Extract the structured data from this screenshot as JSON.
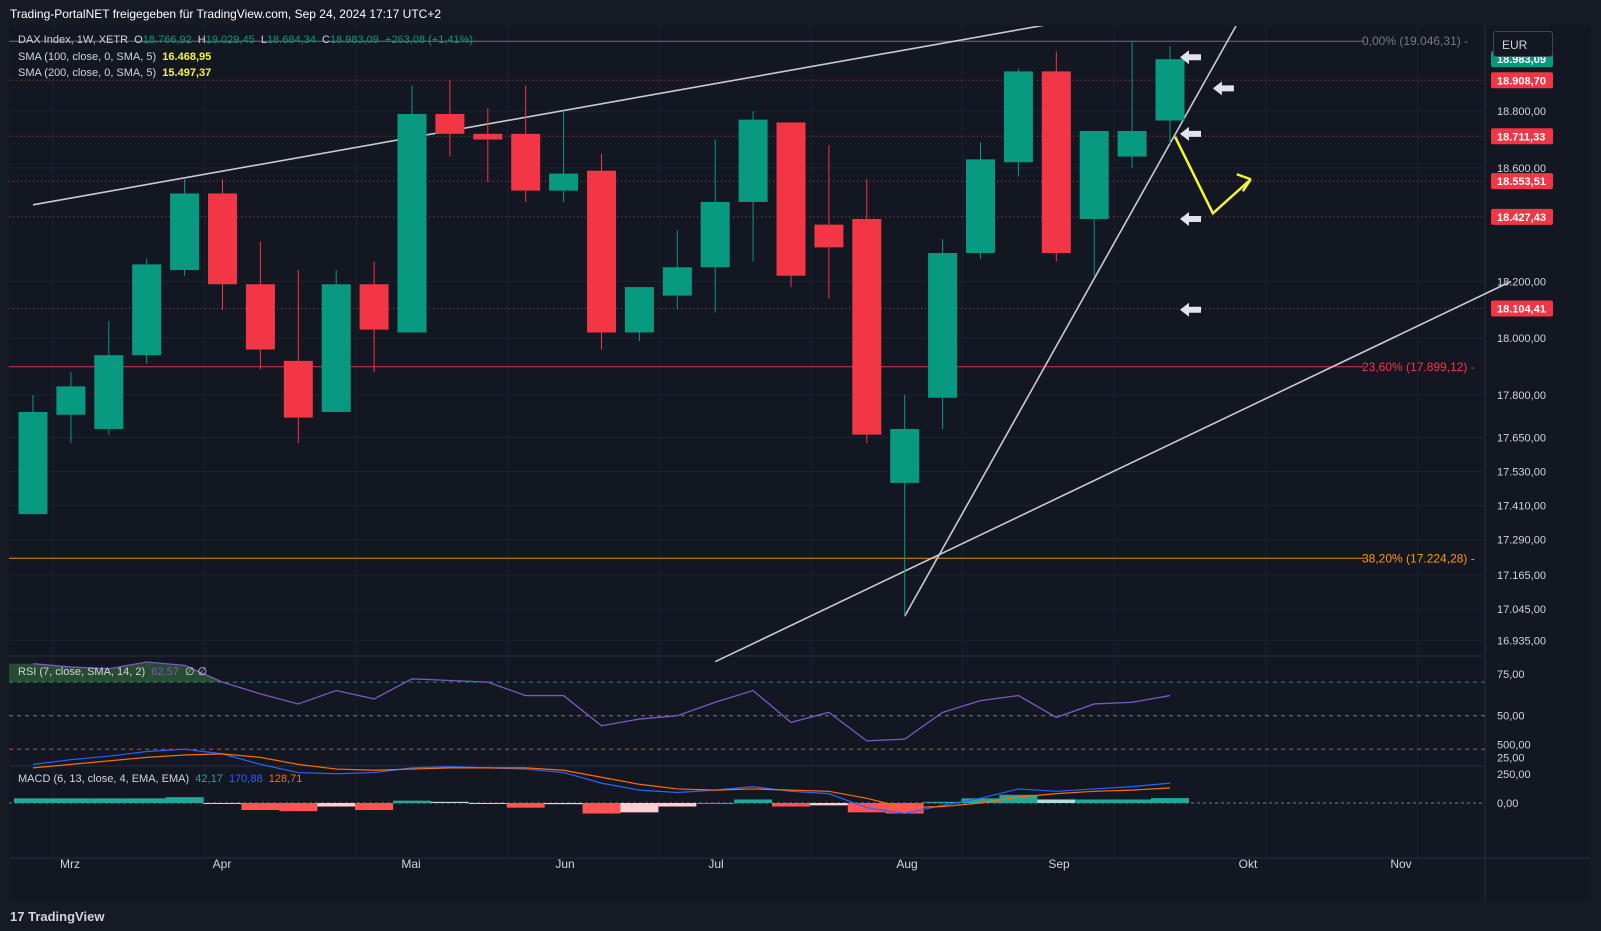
{
  "header": {
    "title": "Trading-PortalNET freigegeben für TradingView.com, Sep 24, 2024 17:17 UTC+2"
  },
  "currency": "EUR",
  "footer": {
    "brand": "TradingView",
    "logo_text": "17"
  },
  "legend": {
    "main": {
      "name": "DAX Index, 1W, XETR",
      "o_label": "O",
      "o": "18.766,92",
      "h_label": "H",
      "h": "19.029,45",
      "l_label": "L",
      "l": "18.684,34",
      "c_label": "C",
      "c": "18.983,09",
      "chg": "+263,08 (+1,41%)"
    },
    "sma100": {
      "label": "SMA (100, close, 0, SMA, 5)",
      "value": "16.468,95"
    },
    "sma200": {
      "label": "SMA (200, close, 0, SMA, 5)",
      "value": "15.497,37"
    },
    "rsi": {
      "label": "RSI (7, close, SMA, 14, 2)",
      "value": "62,57",
      "extra": "∅ ∅"
    },
    "macd": {
      "label": "MACD (6, 13, close, 4, EMA, EMA)",
      "hist": "42,17",
      "macd": "170,88",
      "signal": "128,71"
    }
  },
  "colors": {
    "up": "#089981",
    "down": "#f23645",
    "bg": "#131722",
    "grid": "#1e222d",
    "text": "#d1d4dc",
    "yellow": "#f5f538",
    "fib0": "#787b86",
    "fib236": "#f23645",
    "fib382": "#ff9800",
    "macd_line": "#2962ff",
    "signal_line": "#ff6d00",
    "rsi_line": "#7e57c2"
  },
  "chart_data": {
    "type": "candlestick",
    "timeframe": "1W",
    "x_labels": [
      "Mrz",
      "Apr",
      "Mai",
      "Jun",
      "Jul",
      "Aug",
      "Sep",
      "Okt",
      "Nov"
    ],
    "price_axis": [
      "18.800,00",
      "18.600,00",
      "18.200,00",
      "18.000,00",
      "17.800,00",
      "17.650,00",
      "17.530,00",
      "17.410,00",
      "17.290,00",
      "17.165,00",
      "17.045,00",
      "16.935,00"
    ],
    "price_badges": [
      {
        "value": "18.983,09",
        "color": "#089981"
      },
      {
        "value": "18.908,70",
        "color": "#f23645"
      },
      {
        "value": "18.711,33",
        "color": "#f23645"
      },
      {
        "value": "18.553,51",
        "color": "#f23645"
      },
      {
        "value": "18.427,43",
        "color": "#f23645"
      },
      {
        "value": "18.104,41",
        "color": "#f23645"
      }
    ],
    "fib_levels": [
      {
        "label": "0,00% (19.046,31)",
        "price": 19046.31
      },
      {
        "label": "23,60% (17.899,12)",
        "price": 17899.12
      },
      {
        "label": "38,20% (17.224,28)",
        "price": 17224.28
      }
    ],
    "candles": [
      {
        "o": 17380,
        "h": 17800,
        "l": 17380,
        "c": 17740
      },
      {
        "o": 17730,
        "h": 17880,
        "l": 17630,
        "c": 17830
      },
      {
        "o": 17680,
        "h": 18060,
        "l": 17660,
        "c": 17940
      },
      {
        "o": 17940,
        "h": 18280,
        "l": 17910,
        "c": 18260
      },
      {
        "o": 18240,
        "h": 18560,
        "l": 18220,
        "c": 18510
      },
      {
        "o": 18510,
        "h": 18560,
        "l": 18100,
        "c": 18190
      },
      {
        "o": 18190,
        "h": 18340,
        "l": 17890,
        "c": 17960
      },
      {
        "o": 17920,
        "h": 18240,
        "l": 17630,
        "c": 17720
      },
      {
        "o": 17740,
        "h": 18240,
        "l": 17740,
        "c": 18190
      },
      {
        "o": 18190,
        "h": 18270,
        "l": 17880,
        "c": 18030
      },
      {
        "o": 18020,
        "h": 18890,
        "l": 18020,
        "c": 18790
      },
      {
        "o": 18790,
        "h": 18910,
        "l": 18640,
        "c": 18720
      },
      {
        "o": 18720,
        "h": 18810,
        "l": 18550,
        "c": 18700
      },
      {
        "o": 18720,
        "h": 18890,
        "l": 18480,
        "c": 18520
      },
      {
        "o": 18520,
        "h": 18800,
        "l": 18480,
        "c": 18580
      },
      {
        "o": 18590,
        "h": 18650,
        "l": 17960,
        "c": 18020
      },
      {
        "o": 18020,
        "h": 18180,
        "l": 17990,
        "c": 18180
      },
      {
        "o": 18150,
        "h": 18380,
        "l": 18100,
        "c": 18250
      },
      {
        "o": 18250,
        "h": 18700,
        "l": 18090,
        "c": 18480
      },
      {
        "o": 18480,
        "h": 18800,
        "l": 18270,
        "c": 18770
      },
      {
        "o": 18760,
        "h": 18760,
        "l": 18180,
        "c": 18220
      },
      {
        "o": 18400,
        "h": 18680,
        "l": 18140,
        "c": 18320
      },
      {
        "o": 18420,
        "h": 18560,
        "l": 17630,
        "c": 17660
      },
      {
        "o": 17490,
        "h": 17800,
        "l": 17020,
        "c": 17680
      },
      {
        "o": 17790,
        "h": 18350,
        "l": 17680,
        "c": 18300
      },
      {
        "o": 18300,
        "h": 18690,
        "l": 18280,
        "c": 18630
      },
      {
        "o": 18620,
        "h": 18950,
        "l": 18570,
        "c": 18940
      },
      {
        "o": 18940,
        "h": 19010,
        "l": 18270,
        "c": 18300
      },
      {
        "o": 18420,
        "h": 18720,
        "l": 18220,
        "c": 18730
      },
      {
        "o": 18640,
        "h": 19045,
        "l": 18600,
        "c": 18730
      },
      {
        "o": 18766.92,
        "h": 19029.45,
        "l": 18684.34,
        "c": 18983.09
      }
    ],
    "trendlines": [
      {
        "from": [
          0,
          18470
        ],
        "to": [
          39,
          19395
        ]
      },
      {
        "from": [
          18,
          16860
        ],
        "to": [
          39,
          18200
        ]
      },
      {
        "from": [
          23,
          17020
        ],
        "to": [
          33,
          19400
        ]
      }
    ],
    "rsi": {
      "axis": [
        "75,00",
        "50,00",
        "25,00"
      ],
      "levels": [
        70,
        50,
        30
      ],
      "values": [
        81,
        79,
        78,
        82,
        80,
        70,
        63,
        57,
        65,
        60,
        72,
        71,
        70,
        62,
        62,
        44,
        48,
        50,
        58,
        65,
        46,
        52,
        35,
        36,
        52,
        59,
        62,
        49,
        57,
        58,
        62
      ]
    },
    "macd": {
      "axis": [
        "500,00",
        "250,00",
        "0,00"
      ],
      "macd_line": [
        330,
        370,
        400,
        440,
        460,
        420,
        330,
        260,
        250,
        260,
        300,
        310,
        300,
        290,
        260,
        170,
        110,
        90,
        110,
        140,
        100,
        80,
        -40,
        -90,
        -20,
        40,
        120,
        100,
        120,
        140,
        170
      ],
      "signal_line": [
        300,
        330,
        360,
        390,
        410,
        420,
        390,
        330,
        290,
        280,
        290,
        300,
        300,
        300,
        280,
        220,
        160,
        120,
        110,
        120,
        110,
        100,
        40,
        -40,
        -30,
        0,
        50,
        80,
        100,
        110,
        129
      ],
      "histogram": [
        40,
        40,
        40,
        40,
        50,
        0,
        -60,
        -70,
        -30,
        -60,
        20,
        10,
        0,
        -40,
        -10,
        -90,
        -80,
        -30,
        0,
        30,
        -30,
        -20,
        -80,
        -90,
        10,
        40,
        70,
        30,
        30,
        30,
        42
      ]
    },
    "annotations": {
      "arrows_left": [
        19150,
        18990,
        18720,
        18420,
        18100
      ],
      "arrow_mid": 18880,
      "yellow_path": [
        [
          30,
          18710
        ],
        [
          31,
          18440
        ],
        [
          32,
          18560
        ]
      ]
    }
  }
}
